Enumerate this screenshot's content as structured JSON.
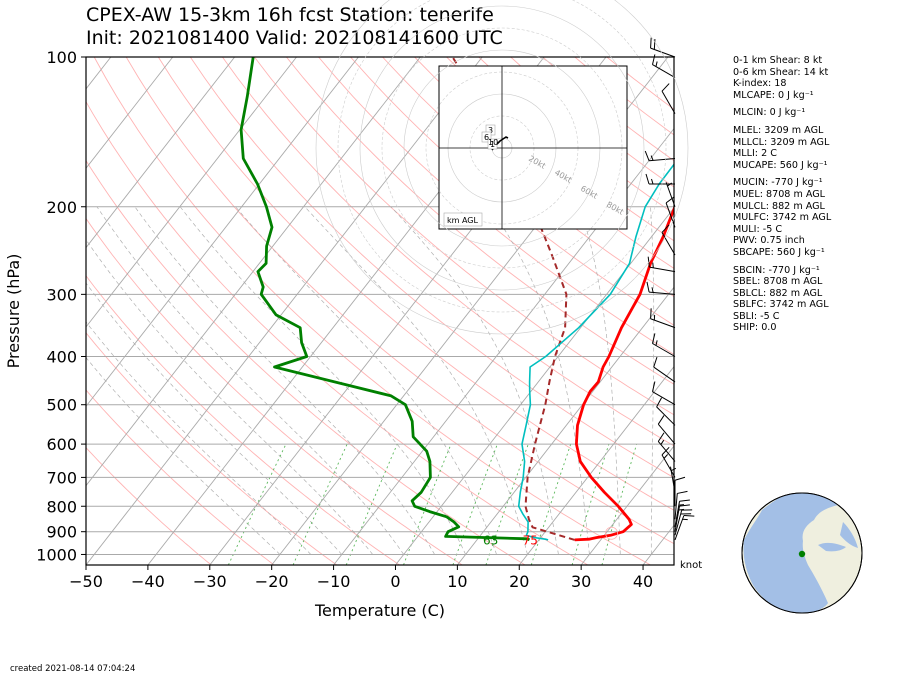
{
  "header": {
    "line1": "CPEX-AW 15-3km  16h fcst  Station: tenerife",
    "line2": "Init: 2021081400  Valid: 202108141600 UTC"
  },
  "stats": {
    "shear01": "0-1 km Shear: 8 kt",
    "shear06": "0-6 km Shear: 14 kt",
    "kindex": "K-index: 18",
    "mlcape": "MLCAPE: 0 J kg⁻¹",
    "mlcin": "MLCIN: 0 J kg⁻¹",
    "mlel": "MLEL: 3209 m AGL",
    "mllcl": "MLLCL: 3209 m AGL",
    "mlli": "MLLI: 2 C",
    "mucape": "MUCAPE: 560 J kg⁻¹",
    "mucin": "MUCIN: -770 J kg⁻¹",
    "muel": "MUEL: 8708 m AGL",
    "mulcl": "MULCL: 882 m AGL",
    "mulfc": "MULFC: 3742 m AGL",
    "muli": "MULI: -5 C",
    "pwv": "PWV: 0.75 inch",
    "sbcape": "SBCAPE: 560 J kg⁻¹",
    "sbcin": "SBCIN: -770 J kg⁻¹",
    "sbel": "SBEL: 8708 m AGL",
    "sblcl": "SBLCL: 882 m AGL",
    "sblfc": "SBLFC: 3742 m AGL",
    "sbli": "SBLI: -5 C",
    "ship": "SHIP: 0.0"
  },
  "footer": {
    "created": "created 2021-08-14 07:04:24"
  },
  "colors": {
    "temperature": "#ff0000",
    "dewpoint": "#008000",
    "wetbulb": "#00bfbf",
    "parcel": "#a52a2a",
    "isobar": "#aaaaaa",
    "dry_adiabat": "#ffb3b3",
    "moist_adiabat": "#b0b0b0",
    "mixing_ratio": "#5cb85c",
    "ocean": "#a3bfe6",
    "land": "#efefdf"
  },
  "chart_data": {
    "type": "line",
    "subtype": "skew-T log-P diagram",
    "xlabel": "Temperature (C)",
    "ylabel": "Pressure (hPa)",
    "xlim": [
      -50,
      45
    ],
    "ylim": [
      1050,
      100
    ],
    "y_scale": "log",
    "x_ticks": [
      -50,
      -40,
      -30,
      -20,
      -10,
      0,
      10,
      20,
      30,
      40
    ],
    "x_tick_labels": [
      "−50",
      "−40",
      "−30",
      "−20",
      "−10",
      "0",
      "10",
      "20",
      "30",
      "40"
    ],
    "y_ticks": [
      100,
      200,
      300,
      400,
      500,
      600,
      700,
      800,
      900,
      1000
    ],
    "y_tick_labels": [
      "100",
      "200",
      "300",
      "400",
      "500",
      "600",
      "700",
      "800",
      "900",
      "1000"
    ],
    "grid": true,
    "series": [
      {
        "role": "temperature",
        "color": "#ff0000",
        "points": [
          [
            935,
            25.8
          ],
          [
            932,
            28
          ],
          [
            925,
            29
          ],
          [
            915,
            31
          ],
          [
            900,
            32.6
          ],
          [
            870,
            33
          ],
          [
            850,
            32
          ],
          [
            800,
            28.6
          ],
          [
            750,
            24.6
          ],
          [
            700,
            20.6
          ],
          [
            650,
            16.8
          ],
          [
            600,
            14
          ],
          [
            550,
            11.8
          ],
          [
            500,
            10.2
          ],
          [
            470,
            9.6
          ],
          [
            450,
            9.7
          ],
          [
            420,
            8.6
          ],
          [
            400,
            8.2
          ],
          [
            350,
            6.6
          ],
          [
            300,
            5.4
          ],
          [
            260,
            3.2
          ],
          [
            230,
            1.9
          ],
          [
            200,
            0
          ],
          [
            180,
            -0.5
          ],
          [
            160,
            -1.2
          ],
          [
            140,
            -3.8
          ],
          [
            120,
            -6.6
          ],
          [
            110,
            -7.9
          ],
          [
            100,
            -7.5
          ]
        ]
      },
      {
        "role": "dewpoint",
        "color": "#008000",
        "points": [
          [
            935,
            18.5
          ],
          [
            930,
            18
          ],
          [
            920,
            4.5
          ],
          [
            900,
            4.3
          ],
          [
            880,
            5.4
          ],
          [
            860,
            4
          ],
          [
            840,
            2.2
          ],
          [
            820,
            -1.2
          ],
          [
            800,
            -4.3
          ],
          [
            780,
            -5.4
          ],
          [
            750,
            -5
          ],
          [
            700,
            -5.4
          ],
          [
            650,
            -7.5
          ],
          [
            620,
            -9.3
          ],
          [
            580,
            -13.3
          ],
          [
            540,
            -15.4
          ],
          [
            500,
            -18.6
          ],
          [
            480,
            -22
          ],
          [
            420,
            -44.5
          ],
          [
            400,
            -40.6
          ],
          [
            375,
            -43.2
          ],
          [
            350,
            -45.3
          ],
          [
            330,
            -50.8
          ],
          [
            300,
            -55.8
          ],
          [
            290,
            -56.4
          ],
          [
            270,
            -59.2
          ],
          [
            260,
            -58.9
          ],
          [
            240,
            -61
          ],
          [
            220,
            -62.5
          ],
          [
            200,
            -66
          ],
          [
            180,
            -70.3
          ],
          [
            160,
            -75.8
          ],
          [
            140,
            -79.8
          ],
          [
            120,
            -83
          ],
          [
            100,
            -87
          ]
        ]
      },
      {
        "role": "wetbulb",
        "color": "#00bfbf",
        "points": [
          [
            935,
            21.5
          ],
          [
            932,
            21
          ],
          [
            925,
            19
          ],
          [
            915,
            17.4
          ],
          [
            900,
            17.2
          ],
          [
            860,
            16
          ],
          [
            830,
            14.2
          ],
          [
            800,
            12.5
          ],
          [
            750,
            11
          ],
          [
            700,
            9.6
          ],
          [
            650,
            7.8
          ],
          [
            600,
            5.2
          ],
          [
            550,
            3.5
          ],
          [
            500,
            1.6
          ],
          [
            470,
            -0.2
          ],
          [
            450,
            -1.4
          ],
          [
            420,
            -3.2
          ],
          [
            400,
            -2
          ],
          [
            350,
            -0.3
          ],
          [
            300,
            0.6
          ],
          [
            260,
            -0.2
          ],
          [
            230,
            -2.5
          ],
          [
            200,
            -4.8
          ],
          [
            180,
            -5.4
          ],
          [
            160,
            -5.5
          ],
          [
            140,
            -7.6
          ],
          [
            120,
            -10
          ],
          [
            110,
            -10.5
          ],
          [
            100,
            -11
          ]
        ]
      },
      {
        "role": "parcel",
        "color": "#a52a2a",
        "dashed": true,
        "points": [
          [
            935,
            25.8
          ],
          [
            882,
            17.4
          ],
          [
            850,
            15.8
          ],
          [
            800,
            13.6
          ],
          [
            700,
            10.3
          ],
          [
            600,
            7.3
          ],
          [
            500,
            4
          ],
          [
            450,
            1.8
          ],
          [
            400,
            -0.5
          ],
          [
            350,
            -2.5
          ],
          [
            300,
            -6.5
          ],
          [
            250,
            -13.8
          ],
          [
            200,
            -23
          ],
          [
            150,
            -35
          ],
          [
            100,
            -54.8
          ]
        ]
      }
    ],
    "annotations": [
      {
        "text": "63",
        "color": "#008000",
        "pressure": 955,
        "temp": 12.8
      },
      {
        "text": "75",
        "color": "#ff0000",
        "pressure": 955,
        "temp": 19.2
      }
    ],
    "wind_unit": "knot",
    "wind_barbs": [
      {
        "pressure": 935,
        "speed_kt": 15,
        "dir_deg": 20
      },
      {
        "pressure": 915,
        "speed_kt": 20,
        "dir_deg": 15
      },
      {
        "pressure": 900,
        "speed_kt": 15,
        "dir_deg": 10
      },
      {
        "pressure": 880,
        "speed_kt": 15,
        "dir_deg": 10
      },
      {
        "pressure": 850,
        "speed_kt": 10,
        "dir_deg": 5
      },
      {
        "pressure": 800,
        "speed_kt": 10,
        "dir_deg": 360
      },
      {
        "pressure": 750,
        "speed_kt": 5,
        "dir_deg": 350
      },
      {
        "pressure": 700,
        "speed_kt": 15,
        "dir_deg": 330
      },
      {
        "pressure": 650,
        "speed_kt": 15,
        "dir_deg": 320
      },
      {
        "pressure": 600,
        "speed_kt": 10,
        "dir_deg": 320
      },
      {
        "pressure": 550,
        "speed_kt": 10,
        "dir_deg": 315
      },
      {
        "pressure": 500,
        "speed_kt": 10,
        "dir_deg": 300
      },
      {
        "pressure": 450,
        "speed_kt": 10,
        "dir_deg": 305
      },
      {
        "pressure": 400,
        "speed_kt": 15,
        "dir_deg": 300
      },
      {
        "pressure": 350,
        "speed_kt": 15,
        "dir_deg": 290
      },
      {
        "pressure": 300,
        "speed_kt": 15,
        "dir_deg": 275
      },
      {
        "pressure": 270,
        "speed_kt": 15,
        "dir_deg": 280
      },
      {
        "pressure": 250,
        "speed_kt": 10,
        "dir_deg": 330
      },
      {
        "pressure": 220,
        "speed_kt": 10,
        "dir_deg": 340
      },
      {
        "pressure": 200,
        "speed_kt": 5,
        "dir_deg": 340
      },
      {
        "pressure": 180,
        "speed_kt": 15,
        "dir_deg": 270
      },
      {
        "pressure": 160,
        "speed_kt": 15,
        "dir_deg": 265
      },
      {
        "pressure": 130,
        "speed_kt": 10,
        "dir_deg": 330
      },
      {
        "pressure": 110,
        "speed_kt": 15,
        "dir_deg": 300
      },
      {
        "pressure": 100,
        "speed_kt": 20,
        "dir_deg": 290
      }
    ],
    "hodograph": {
      "unit_label": "km AGL",
      "ring_labels": [
        "20kt",
        "40kt",
        "60kt",
        "80kt"
      ],
      "height_labels": [
        "3",
        "6",
        "1",
        "10"
      ]
    },
    "locator_map": {
      "station_marker_color": "#008000"
    }
  }
}
